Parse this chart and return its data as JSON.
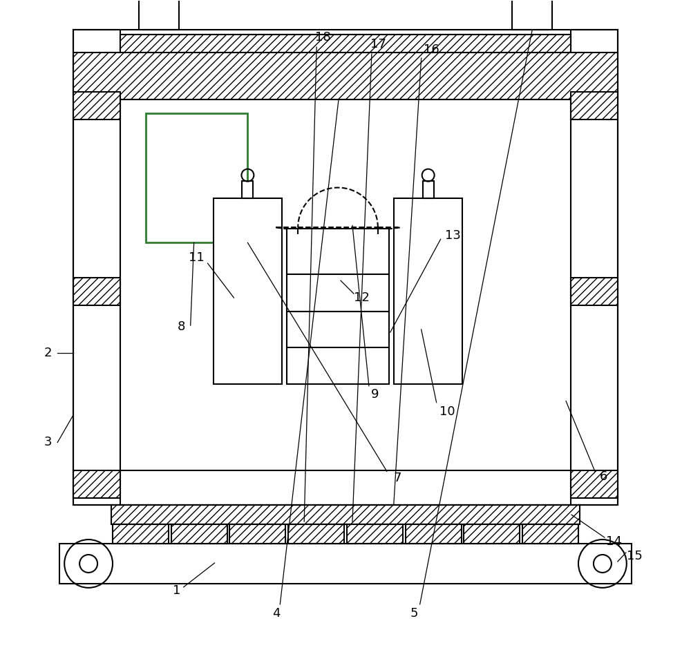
{
  "bg_color": "#ffffff",
  "line_color": "#000000",
  "figsize": [
    10.0,
    9.41
  ],
  "dpi": 100
}
